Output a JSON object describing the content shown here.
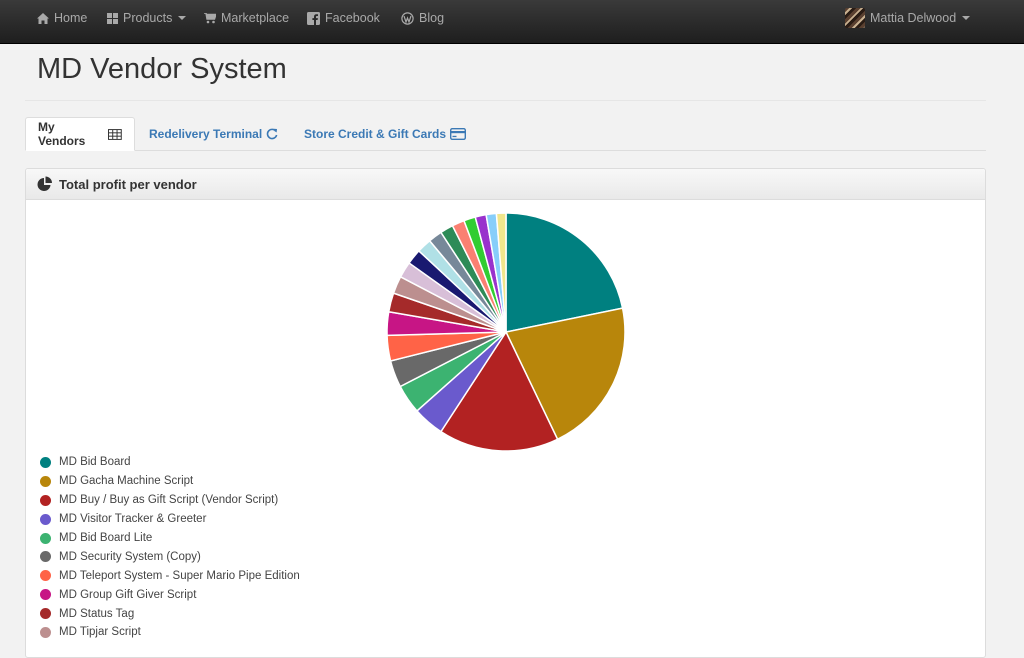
{
  "navbar": {
    "home": "Home",
    "products": "Products",
    "marketplace": "Marketplace",
    "facebook": "Facebook",
    "blog": "Blog",
    "user": "Mattia Delwood"
  },
  "page": {
    "title": "MD Vendor System"
  },
  "tabs": [
    {
      "label": "My Vendors",
      "icon": "table-icon",
      "active": true
    },
    {
      "label": "Redelivery Terminal",
      "icon": "refresh-icon",
      "active": false
    },
    {
      "label": "Store Credit & Gift Cards",
      "icon": "credit-card-icon",
      "active": false
    }
  ],
  "panel": {
    "title": "Total profit per vendor",
    "icon": "pie-chart-icon"
  },
  "chart_data": {
    "type": "pie",
    "title": "Total profit per vendor",
    "legend_position": "bottom-left",
    "slices": [
      {
        "label": "MD Bid Board",
        "value": 22,
        "color": "#008080"
      },
      {
        "label": "MD Gacha Machine Script",
        "value": 21.3,
        "color": "#b8860b"
      },
      {
        "label": "MD Buy / Buy as Gift Script (Vendor Script)",
        "value": 16.5,
        "color": "#b22222"
      },
      {
        "label": "MD Visitor Tracker & Greeter",
        "value": 4.3,
        "color": "#6a5acd"
      },
      {
        "label": "MD Bid Board Lite",
        "value": 4.0,
        "color": "#3cb371"
      },
      {
        "label": "MD Security System (Copy)",
        "value": 3.7,
        "color": "#696969"
      },
      {
        "label": "MD Teleport System - Super Mario Pipe Edition",
        "value": 3.5,
        "color": "#ff6347"
      },
      {
        "label": "MD Group Gift Giver Script",
        "value": 3.2,
        "color": "#c71585"
      },
      {
        "label": "MD Status Tag",
        "value": 2.6,
        "color": "#a52a2a"
      },
      {
        "label": "MD Tipjar Script",
        "value": 2.4,
        "color": "#bc8f8f"
      },
      {
        "label": "",
        "value": 2.2,
        "color": "#d8bfd8"
      },
      {
        "label": "",
        "value": 2.1,
        "color": "#191970"
      },
      {
        "label": "",
        "value": 2.0,
        "color": "#b0e0e6"
      },
      {
        "label": "",
        "value": 1.9,
        "color": "#778899"
      },
      {
        "label": "",
        "value": 1.8,
        "color": "#2e8b57"
      },
      {
        "label": "",
        "value": 1.7,
        "color": "#fa8072"
      },
      {
        "label": "",
        "value": 1.6,
        "color": "#32cd32"
      },
      {
        "label": "",
        "value": 1.5,
        "color": "#9932cc"
      },
      {
        "label": "",
        "value": 1.4,
        "color": "#87cefa"
      },
      {
        "label": "",
        "value": 1.3,
        "color": "#f0e68c"
      }
    ]
  }
}
